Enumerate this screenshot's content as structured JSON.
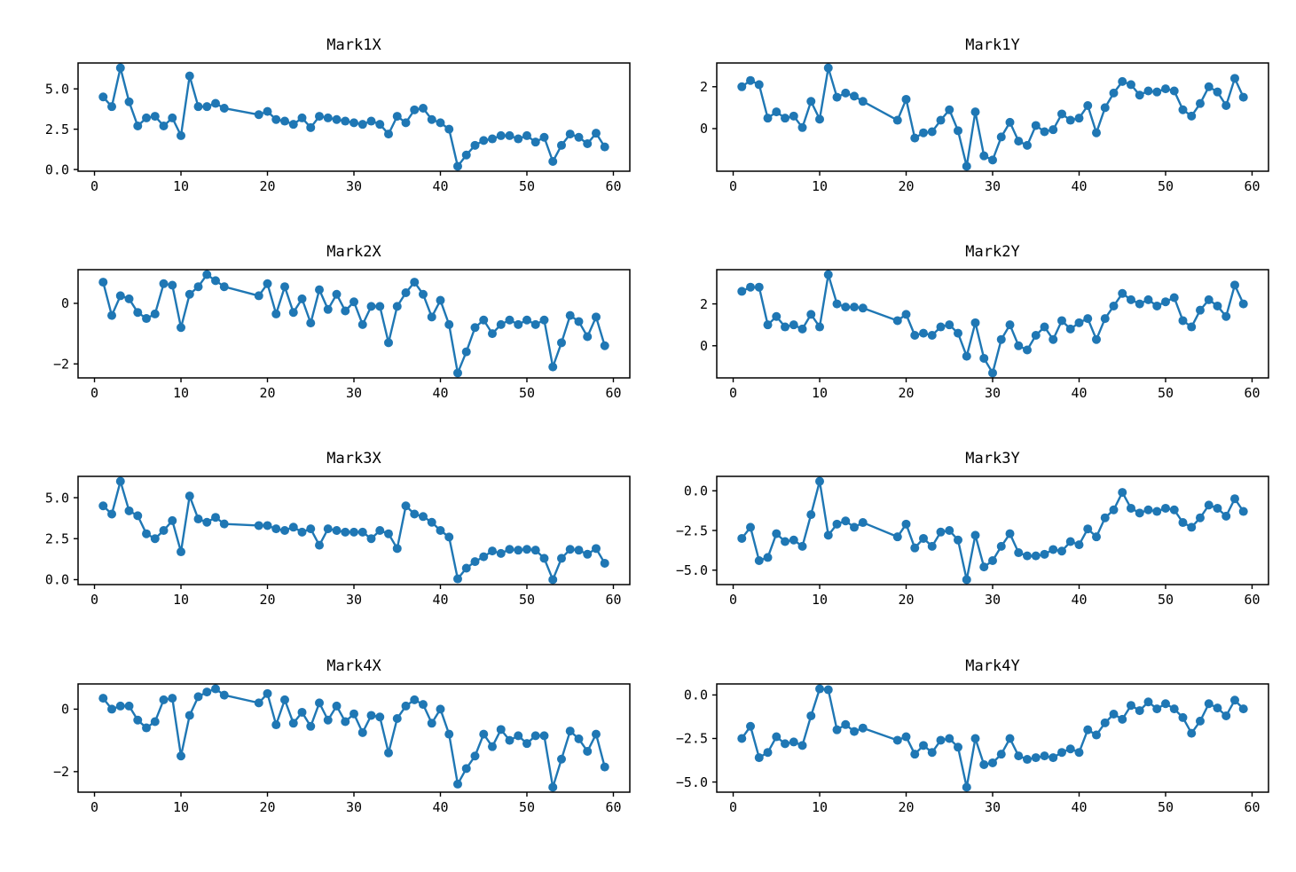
{
  "figure": {
    "background": "#ffffff",
    "accent_color": "#1f77b4",
    "rows": 4,
    "cols": 2
  },
  "chart_data": {
    "type": "line",
    "marker": "circle",
    "line_color": "#1f77b4",
    "marker_color": "#1f77b4",
    "grid": false,
    "legend": null,
    "xlabel": "",
    "ylabel": "",
    "x_ticks": [
      0,
      10,
      20,
      30,
      40,
      50,
      60
    ],
    "x_tick_labels": [
      "0",
      "10",
      "20",
      "30",
      "40",
      "50",
      "60"
    ],
    "x_range_note": "data points at x=1..15 and x=19..59; gap 16-18 drawn as straight connecting line",
    "x": [
      1,
      2,
      3,
      4,
      5,
      6,
      7,
      8,
      9,
      10,
      11,
      12,
      13,
      14,
      15,
      19,
      20,
      21,
      22,
      23,
      24,
      25,
      26,
      27,
      28,
      29,
      30,
      31,
      32,
      33,
      34,
      35,
      36,
      37,
      38,
      39,
      40,
      41,
      42,
      43,
      44,
      45,
      46,
      47,
      48,
      49,
      50,
      51,
      52,
      53,
      54,
      55,
      56,
      57,
      58,
      59
    ],
    "plots": [
      {
        "title": "Mark1X",
        "y_ticks": [
          0.0,
          2.5,
          5.0
        ],
        "y_tick_labels": [
          "0.0",
          "2.5",
          "5.0"
        ],
        "values": [
          4.5,
          3.9,
          6.3,
          4.2,
          2.7,
          3.2,
          3.3,
          2.7,
          3.2,
          2.1,
          5.8,
          3.9,
          3.9,
          4.1,
          3.8,
          3.4,
          3.6,
          3.1,
          3.0,
          2.8,
          3.2,
          2.6,
          3.3,
          3.2,
          3.1,
          3.0,
          2.9,
          2.8,
          3.0,
          2.8,
          2.2,
          3.3,
          2.9,
          3.7,
          3.8,
          3.1,
          2.9,
          2.5,
          0.2,
          0.9,
          1.5,
          1.8,
          1.9,
          2.1,
          2.1,
          1.9,
          2.1,
          1.7,
          2.0,
          0.5,
          1.5,
          2.2,
          2.0,
          1.6,
          2.25,
          1.4
        ]
      },
      {
        "title": "Mark1Y",
        "y_ticks": [
          0,
          2
        ],
        "y_tick_labels": [
          "0",
          "2"
        ],
        "values": [
          2.0,
          2.3,
          2.1,
          0.5,
          0.8,
          0.5,
          0.6,
          0.05,
          1.3,
          0.45,
          2.9,
          1.5,
          1.7,
          1.55,
          1.3,
          0.4,
          1.4,
          -0.45,
          -0.2,
          -0.15,
          0.4,
          0.9,
          -0.1,
          -1.8,
          0.8,
          -1.3,
          -1.5,
          -0.4,
          0.3,
          -0.6,
          -0.8,
          0.15,
          -0.15,
          -0.05,
          0.7,
          0.4,
          0.5,
          1.1,
          -0.2,
          1.0,
          1.7,
          2.25,
          2.1,
          1.6,
          1.8,
          1.75,
          1.9,
          1.8,
          0.9,
          0.6,
          1.2,
          2.0,
          1.75,
          1.1,
          2.4,
          1.5
        ]
      },
      {
        "title": "Mark2X",
        "y_ticks": [
          -2,
          0
        ],
        "y_tick_labels": [
          "−2",
          "0"
        ],
        "values": [
          0.7,
          -0.4,
          0.25,
          0.15,
          -0.3,
          -0.5,
          -0.35,
          0.65,
          0.6,
          -0.8,
          0.3,
          0.55,
          0.95,
          0.75,
          0.55,
          0.25,
          0.65,
          -0.35,
          0.55,
          -0.3,
          0.15,
          -0.65,
          0.45,
          -0.2,
          0.3,
          -0.25,
          0.05,
          -0.7,
          -0.1,
          -0.1,
          -1.3,
          -0.1,
          0.35,
          0.7,
          0.3,
          -0.45,
          0.1,
          -0.7,
          -2.3,
          -1.6,
          -0.8,
          -0.55,
          -1.0,
          -0.7,
          -0.55,
          -0.7,
          -0.55,
          -0.7,
          -0.55,
          -2.1,
          -1.3,
          -0.4,
          -0.6,
          -1.1,
          -0.45,
          -1.4
        ]
      },
      {
        "title": "Mark2Y",
        "y_ticks": [
          0,
          2
        ],
        "y_tick_labels": [
          "0",
          "2"
        ],
        "values": [
          2.6,
          2.8,
          2.8,
          1.0,
          1.4,
          0.9,
          1.0,
          0.8,
          1.5,
          0.9,
          3.4,
          2.0,
          1.85,
          1.85,
          1.8,
          1.2,
          1.5,
          0.5,
          0.6,
          0.5,
          0.9,
          1.0,
          0.6,
          -0.5,
          1.1,
          -0.6,
          -1.3,
          0.3,
          1.0,
          0.0,
          -0.2,
          0.5,
          0.9,
          0.3,
          1.2,
          0.8,
          1.1,
          1.3,
          0.3,
          1.3,
          1.9,
          2.5,
          2.2,
          2.0,
          2.2,
          1.9,
          2.1,
          2.3,
          1.2,
          0.9,
          1.7,
          2.2,
          1.9,
          1.4,
          2.9,
          2.0
        ]
      },
      {
        "title": "Mark3X",
        "y_ticks": [
          0.0,
          2.5,
          5.0
        ],
        "y_tick_labels": [
          "0.0",
          "2.5",
          "5.0"
        ],
        "values": [
          4.5,
          4.0,
          6.0,
          4.2,
          3.9,
          2.8,
          2.5,
          3.0,
          3.6,
          1.7,
          5.1,
          3.7,
          3.5,
          3.8,
          3.4,
          3.3,
          3.3,
          3.1,
          3.0,
          3.2,
          2.9,
          3.1,
          2.1,
          3.1,
          3.0,
          2.9,
          2.9,
          2.9,
          2.5,
          3.0,
          2.8,
          1.9,
          4.5,
          4.0,
          3.85,
          3.5,
          3.0,
          2.6,
          0.05,
          0.7,
          1.1,
          1.4,
          1.75,
          1.6,
          1.85,
          1.8,
          1.85,
          1.8,
          1.3,
          0.0,
          1.3,
          1.85,
          1.8,
          1.55,
          1.9,
          1.0
        ]
      },
      {
        "title": "Mark3Y",
        "y_ticks": [
          -5.0,
          -2.5,
          0.0
        ],
        "y_tick_labels": [
          "−5.0",
          "−2.5",
          "0.0"
        ],
        "values": [
          -3.0,
          -2.3,
          -4.4,
          -4.2,
          -2.7,
          -3.2,
          -3.1,
          -3.5,
          -1.5,
          0.6,
          -2.8,
          -2.1,
          -1.9,
          -2.3,
          -2.0,
          -2.9,
          -2.1,
          -3.6,
          -3.0,
          -3.5,
          -2.6,
          -2.5,
          -3.1,
          -5.6,
          -2.8,
          -4.8,
          -4.4,
          -3.5,
          -2.7,
          -3.9,
          -4.1,
          -4.1,
          -4.0,
          -3.7,
          -3.8,
          -3.2,
          -3.4,
          -2.4,
          -2.9,
          -1.7,
          -1.2,
          -0.1,
          -1.1,
          -1.4,
          -1.2,
          -1.3,
          -1.1,
          -1.2,
          -2.0,
          -2.3,
          -1.7,
          -0.9,
          -1.1,
          -1.6,
          -0.5,
          -1.3
        ]
      },
      {
        "title": "Mark4X",
        "y_ticks": [
          -2,
          0
        ],
        "y_tick_labels": [
          "−2",
          "0"
        ],
        "values": [
          0.35,
          0.0,
          0.1,
          0.1,
          -0.35,
          -0.6,
          -0.4,
          0.3,
          0.35,
          -1.5,
          -0.2,
          0.4,
          0.55,
          0.65,
          0.45,
          0.2,
          0.5,
          -0.5,
          0.3,
          -0.45,
          -0.1,
          -0.55,
          0.2,
          -0.35,
          0.1,
          -0.4,
          -0.15,
          -0.75,
          -0.2,
          -0.25,
          -1.4,
          -0.3,
          0.1,
          0.3,
          0.15,
          -0.45,
          0.0,
          -0.8,
          -2.4,
          -1.9,
          -1.5,
          -0.8,
          -1.2,
          -0.65,
          -1.0,
          -0.85,
          -1.1,
          -0.85,
          -0.85,
          -2.5,
          -1.6,
          -0.7,
          -0.95,
          -1.35,
          -0.8,
          -1.85
        ]
      },
      {
        "title": "Mark4Y",
        "y_ticks": [
          -5.0,
          -2.5,
          0.0
        ],
        "y_tick_labels": [
          "−5.0",
          "−2.5",
          "0.0"
        ],
        "values": [
          -2.5,
          -1.8,
          -3.6,
          -3.3,
          -2.4,
          -2.8,
          -2.7,
          -2.9,
          -1.2,
          0.35,
          0.3,
          -2.0,
          -1.7,
          -2.1,
          -1.9,
          -2.6,
          -2.4,
          -3.4,
          -2.9,
          -3.3,
          -2.6,
          -2.5,
          -3.0,
          -5.3,
          -2.5,
          -4.0,
          -3.9,
          -3.4,
          -2.5,
          -3.5,
          -3.7,
          -3.6,
          -3.5,
          -3.6,
          -3.3,
          -3.1,
          -3.3,
          -2.0,
          -2.3,
          -1.6,
          -1.1,
          -1.4,
          -0.6,
          -0.9,
          -0.4,
          -0.8,
          -0.5,
          -0.8,
          -1.3,
          -2.2,
          -1.5,
          -0.5,
          -0.75,
          -1.2,
          -0.3,
          -0.8
        ]
      }
    ]
  }
}
